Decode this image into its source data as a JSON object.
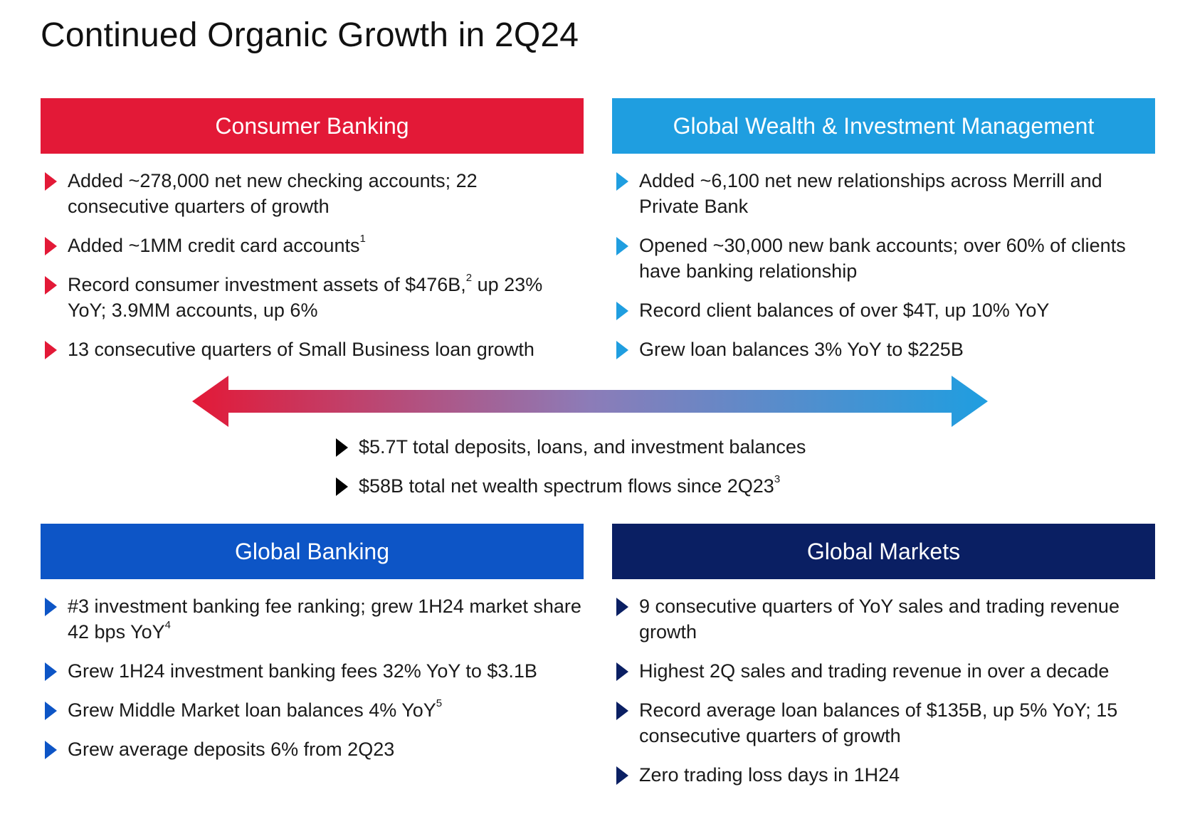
{
  "title": "Continued Organic Growth in 2Q24",
  "colors": {
    "consumer": "#e31937",
    "wealth": "#1f9ee0",
    "banking": "#0d55c6",
    "markets": "#0a1f63",
    "center_bullet": "#000000"
  },
  "consumer": {
    "header": "Consumer Banking",
    "bullets": [
      {
        "text": "Added ~278,000 net new checking accounts; 22 consecutive quarters of growth"
      },
      {
        "text": "Added ~1MM credit card accounts",
        "sup": "1"
      },
      {
        "text": "Record consumer investment assets of $476B,",
        "sup": "2",
        "tail": " up 23% YoY; 3.9MM accounts, up 6%"
      },
      {
        "text": "13 consecutive quarters of Small Business loan growth"
      }
    ]
  },
  "wealth": {
    "header": "Global Wealth & Investment Management",
    "bullets": [
      {
        "text": "Added ~6,100 net new relationships across Merrill and Private Bank"
      },
      {
        "text": "Opened ~30,000 new bank accounts; over 60% of clients have banking relationship"
      },
      {
        "text": "Record client balances of over $4T, up 10% YoY"
      },
      {
        "text": "Grew loan balances 3% YoY to $225B"
      }
    ]
  },
  "center": {
    "bullets": [
      {
        "text": "$5.7T total deposits, loans, and investment balances"
      },
      {
        "text": "$58B total net wealth spectrum flows since 2Q23",
        "sup": "3"
      }
    ]
  },
  "banking": {
    "header": "Global Banking",
    "bullets": [
      {
        "text": "#3 investment banking fee ranking; grew 1H24 market share 42 bps YoY",
        "sup": "4"
      },
      {
        "text": "Grew 1H24 investment banking fees 32% YoY to $3.1B"
      },
      {
        "text": "Grew Middle Market loan balances 4% YoY",
        "sup": "5"
      },
      {
        "text": "Grew average deposits 6% from 2Q23"
      }
    ]
  },
  "markets": {
    "header": "Global Markets",
    "bullets": [
      {
        "text": "9 consecutive quarters of YoY sales and trading revenue growth"
      },
      {
        "text": "Highest 2Q sales and trading revenue in over a decade"
      },
      {
        "text": "Record average loan balances of $135B, up 5% YoY; 15 consecutive quarters of growth"
      },
      {
        "text": "Zero trading loss days in 1H24"
      }
    ]
  }
}
